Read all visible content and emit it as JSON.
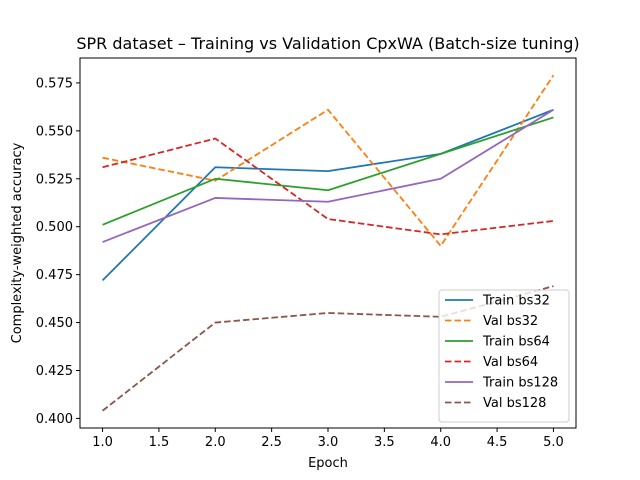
{
  "chart_data": {
    "type": "line",
    "title": "SPR dataset – Training vs Validation CpxWA (Batch-size tuning)",
    "xlabel": "Epoch",
    "ylabel": "Complexity-weighted accuracy",
    "xlim": [
      0.8,
      5.2
    ],
    "ylim": [
      0.395,
      0.588
    ],
    "xticks": [
      1.0,
      1.5,
      2.0,
      2.5,
      3.0,
      3.5,
      4.0,
      4.5,
      5.0
    ],
    "xtick_labels": [
      "1.0",
      "1.5",
      "2.0",
      "2.5",
      "3.0",
      "3.5",
      "4.0",
      "4.5",
      "5.0"
    ],
    "yticks": [
      0.4,
      0.425,
      0.45,
      0.475,
      0.5,
      0.525,
      0.55,
      0.575
    ],
    "ytick_labels": [
      "0.400",
      "0.425",
      "0.450",
      "0.475",
      "0.500",
      "0.525",
      "0.550",
      "0.575"
    ],
    "grid": false,
    "legend_position": "lower-right",
    "x": [
      1,
      2,
      3,
      4,
      5
    ],
    "series": [
      {
        "name": "Train bs32",
        "values": [
          0.472,
          0.531,
          0.529,
          0.538,
          0.561
        ],
        "color": "#1f77b4",
        "dash": "solid"
      },
      {
        "name": "Val bs32",
        "values": [
          0.536,
          0.524,
          0.561,
          0.49,
          0.579
        ],
        "color": "#ff7f0e",
        "dash": "dashed"
      },
      {
        "name": "Train bs64",
        "values": [
          0.501,
          0.525,
          0.519,
          0.538,
          0.557
        ],
        "color": "#2ca02c",
        "dash": "solid"
      },
      {
        "name": "Val bs64",
        "values": [
          0.531,
          0.546,
          0.504,
          0.496,
          0.503
        ],
        "color": "#d62728",
        "dash": "dashed"
      },
      {
        "name": "Train bs128",
        "values": [
          0.492,
          0.515,
          0.513,
          0.525,
          0.561
        ],
        "color": "#9467bd",
        "dash": "solid"
      },
      {
        "name": "Val bs128",
        "values": [
          0.404,
          0.45,
          0.455,
          0.453,
          0.469
        ],
        "color": "#8c564b",
        "dash": "dashed"
      }
    ]
  }
}
